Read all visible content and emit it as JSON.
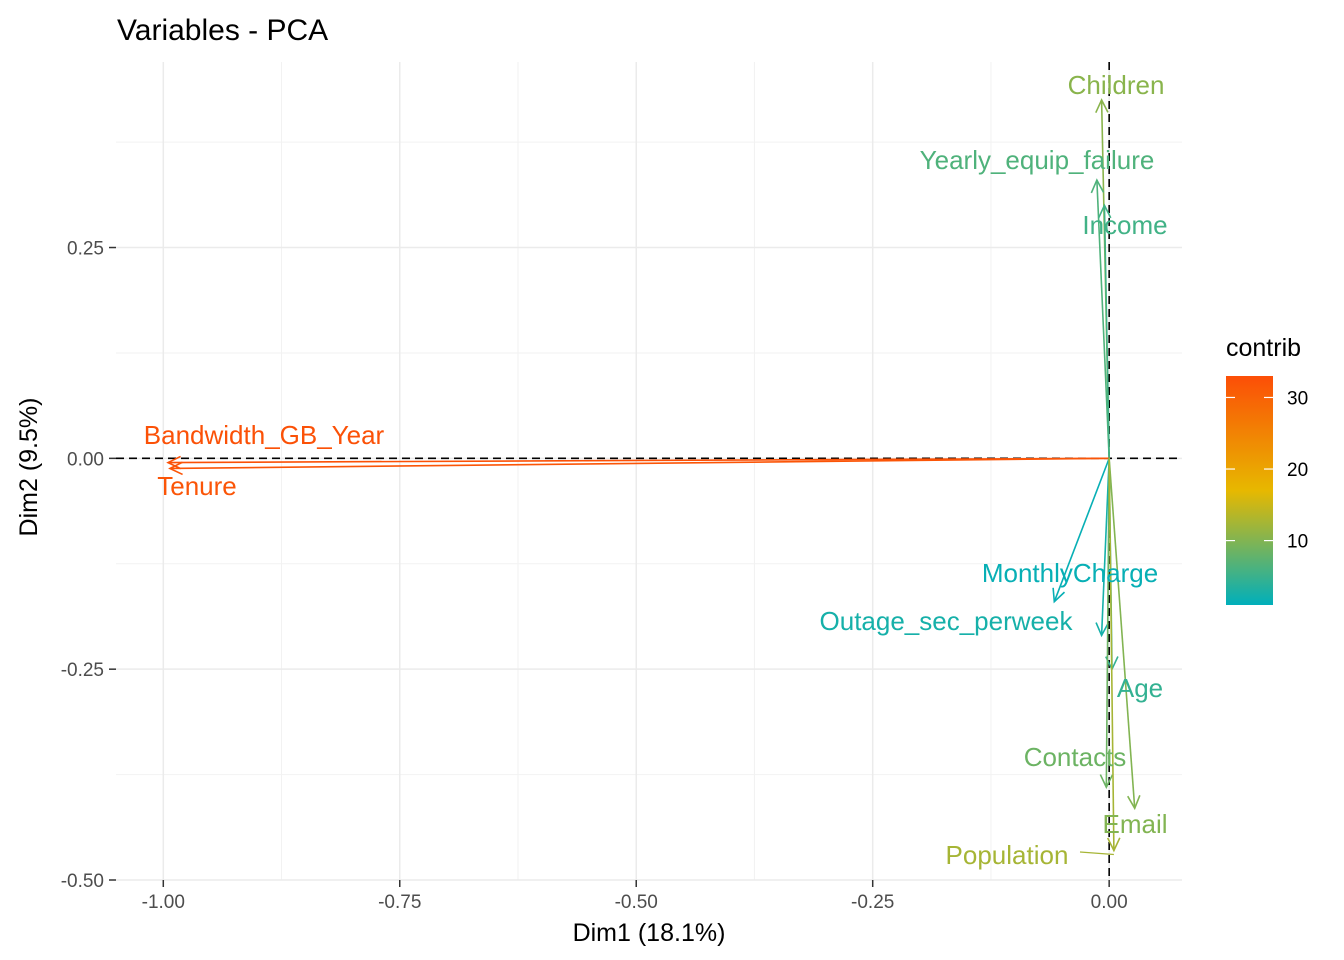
{
  "chart_data": {
    "type": "scatter",
    "subtype": "pca-variable-correlation-arrows",
    "title": "Variables - PCA",
    "xlabel": "Dim1 (18.1%)",
    "ylabel": "Dim2 (9.5%)",
    "xlim": [
      -1.05,
      0.077
    ],
    "ylim": [
      -0.5,
      0.47
    ],
    "xticks": [
      -1.0,
      -0.75,
      -0.5,
      -0.25,
      0.0
    ],
    "xtick_labels": [
      "-1.00",
      "-0.75",
      "-0.50",
      "-0.25",
      "0.00"
    ],
    "yticks": [
      0.25,
      0.0,
      -0.25,
      -0.5
    ],
    "ytick_labels": [
      "0.25",
      "0.00",
      "-0.25",
      "-0.50"
    ],
    "grid": true,
    "reference_lines": {
      "x": 0,
      "y": 0,
      "style": "dashed"
    },
    "color_scale": {
      "name": "contrib",
      "domain": [
        1,
        33
      ],
      "ticks": [
        10,
        20,
        30
      ],
      "tick_labels": [
        "10",
        "20",
        "30"
      ],
      "colors": [
        "#00AFBB",
        "#E7B800",
        "#FC4E07"
      ]
    },
    "legend_position": "right",
    "series": [
      {
        "name": "Children",
        "x": -0.008,
        "y": 0.425,
        "contrib": 10.5
      },
      {
        "name": "Yearly_equip_failure",
        "x": -0.013,
        "y": 0.33,
        "contrib": 6.5
      },
      {
        "name": "Income",
        "x": -0.005,
        "y": 0.3,
        "contrib": 5.5
      },
      {
        "name": "Bandwidth_GB_Year",
        "x": -0.995,
        "y": -0.005,
        "contrib": 32.5
      },
      {
        "name": "Tenure",
        "x": -0.993,
        "y": -0.012,
        "contrib": 32.0
      },
      {
        "name": "MonthlyCharge",
        "x": -0.058,
        "y": -0.17,
        "contrib": 1.5
      },
      {
        "name": "Outage_sec_perweek",
        "x": -0.008,
        "y": -0.21,
        "contrib": 2.5
      },
      {
        "name": "Age",
        "x": 0.003,
        "y": -0.25,
        "contrib": 4.5
      },
      {
        "name": "Contacts",
        "x": -0.003,
        "y": -0.39,
        "contrib": 8.5
      },
      {
        "name": "Email",
        "x": 0.027,
        "y": -0.415,
        "contrib": 10.0
      },
      {
        "name": "Population",
        "x": 0.005,
        "y": -0.465,
        "contrib": 12.5
      }
    ]
  }
}
